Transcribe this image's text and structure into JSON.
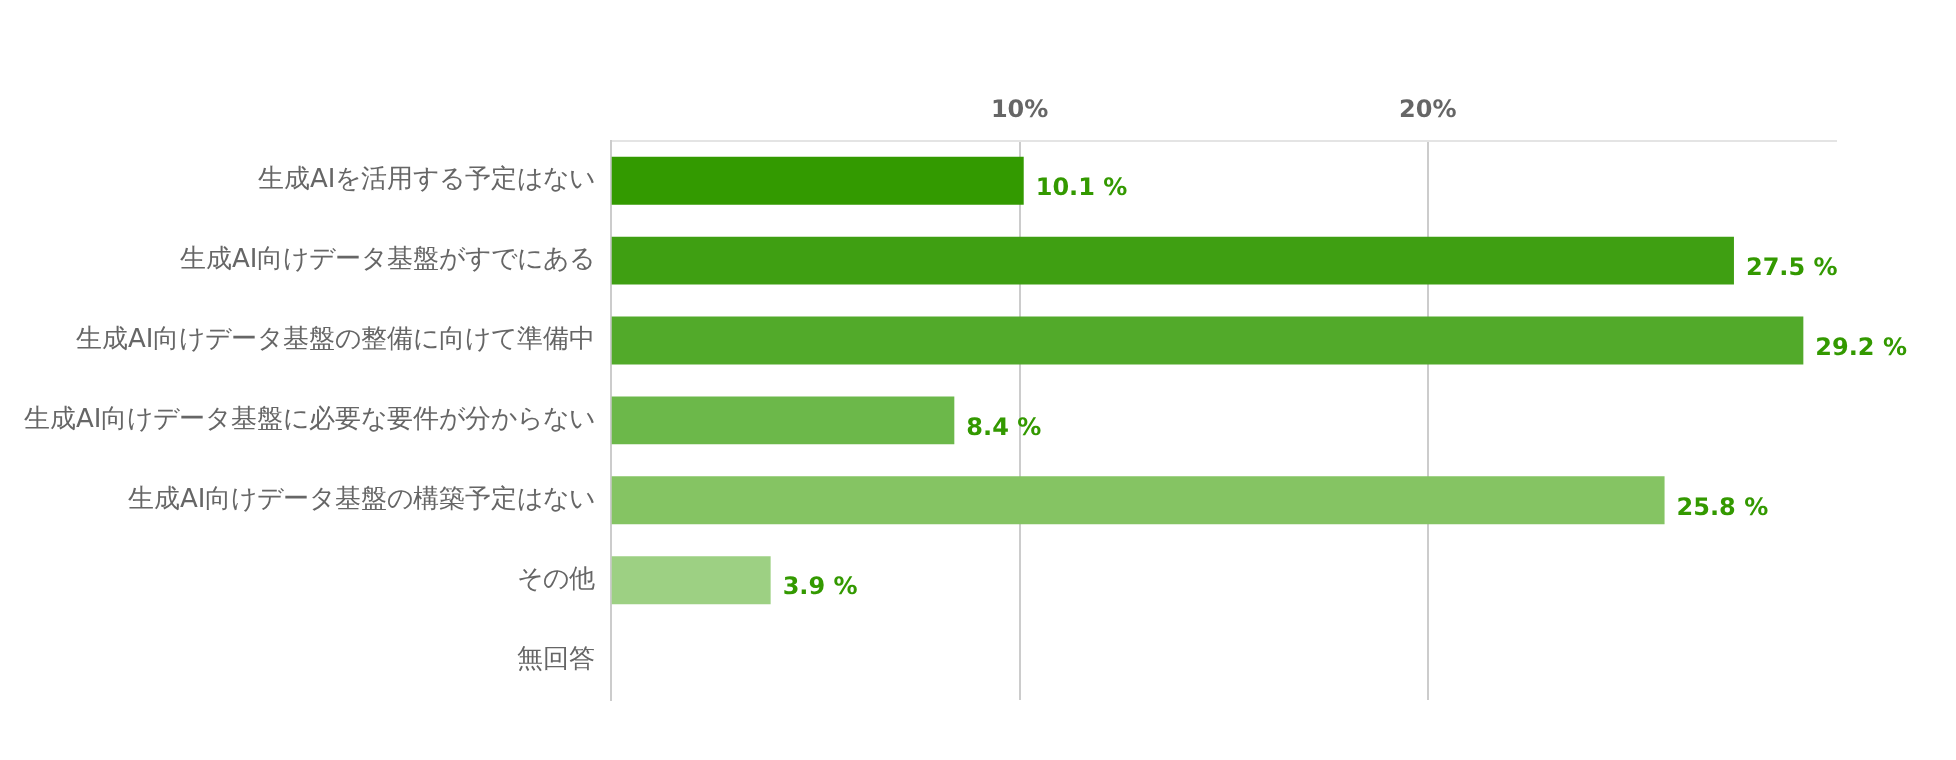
{
  "chart_data": {
    "type": "bar",
    "orientation": "horizontal",
    "categories": [
      "生成AIを活用する予定はない",
      "生成AI向けデータ基盤がすでにある",
      "生成AI向けデータ基盤の整備に向けて準備中",
      "生成AI向けデータ基盤に必要な要件が分からない",
      "生成AI向けデータ基盤の構築予定はない",
      "その他",
      "無回答"
    ],
    "values": [
      10.1,
      27.5,
      29.2,
      8.4,
      25.8,
      3.9,
      null
    ],
    "colors": [
      "#339a00",
      "#3f9f12",
      "#52aa2a",
      "#6cb84a",
      "#85c463",
      "#9dd083",
      "#b0da9c"
    ],
    "value_labels": [
      "10.1 %",
      "27.5 %",
      "29.2 %",
      "8.4 %",
      "25.8 %",
      "3.9 %",
      null
    ],
    "xlim": [
      0,
      30
    ],
    "xticks": [
      {
        "value": 10,
        "label": "10%"
      },
      {
        "value": 20,
        "label": "20%"
      }
    ],
    "grid": "x",
    "legend": false
  }
}
